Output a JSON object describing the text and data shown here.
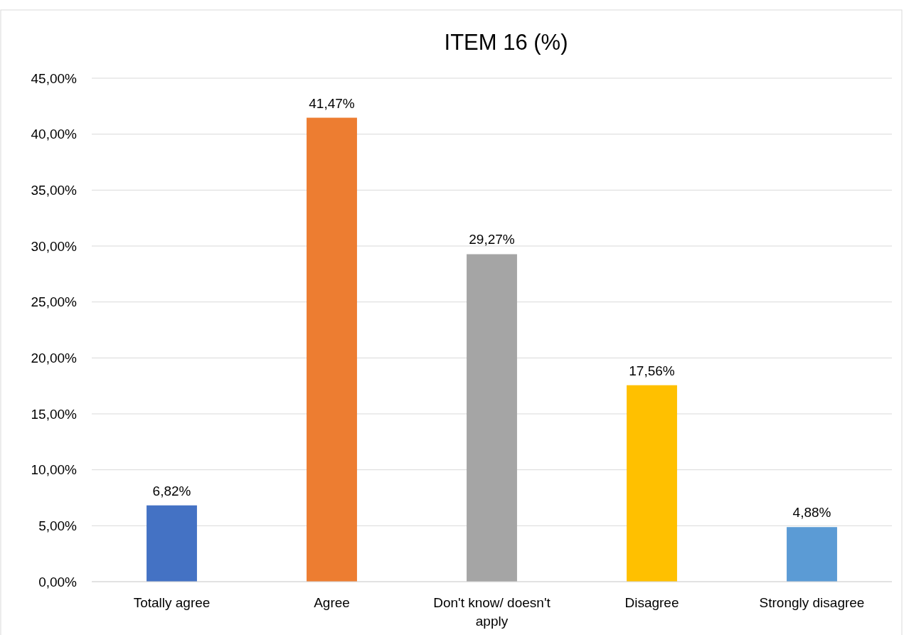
{
  "chart_data": {
    "type": "bar",
    "title": "ITEM 16 (%)",
    "categories": [
      "Totally agree",
      "Agree",
      "Don't know/ doesn't apply",
      "Disagree",
      "Strongly disagree"
    ],
    "values": [
      6.82,
      41.47,
      29.27,
      17.56,
      4.88
    ],
    "colors": [
      "#4472c4",
      "#ed7d31",
      "#a5a5a5",
      "#ffc000",
      "#5b9bd5"
    ],
    "value_labels": [
      "6,82%",
      "41,47%",
      "29,27%",
      "17,56%",
      "4,88%"
    ],
    "ylim": [
      0,
      45
    ],
    "yticks": [
      {
        "value": 0,
        "label": "0,00%"
      },
      {
        "value": 5,
        "label": "5,00%"
      },
      {
        "value": 10,
        "label": "10,00%"
      },
      {
        "value": 15,
        "label": "15,00%"
      },
      {
        "value": 20,
        "label": "20,00%"
      },
      {
        "value": 25,
        "label": "25,00%"
      },
      {
        "value": 30,
        "label": "30,00%"
      },
      {
        "value": 35,
        "label": "35,00%"
      },
      {
        "value": 40,
        "label": "40,00%"
      },
      {
        "value": 45,
        "label": "45,00%"
      }
    ],
    "grid": "y"
  }
}
